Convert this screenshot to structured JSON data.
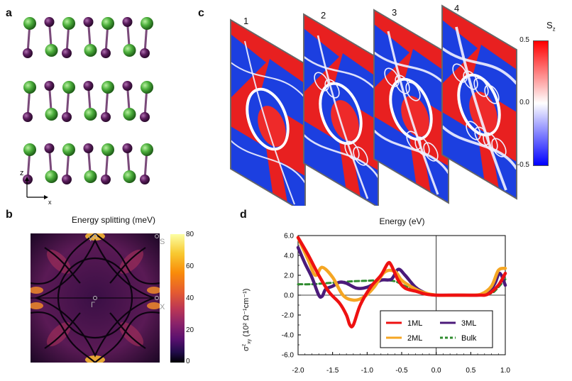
{
  "panels": {
    "a": {
      "label": "a",
      "axis_z": "z",
      "axis_x": "x"
    },
    "b": {
      "label": "b",
      "title": "Energy splitting (meV)",
      "point_s": "S",
      "point_x": "X",
      "point_gamma": "Γ",
      "colorbar_ticks": [
        "80",
        "60",
        "40",
        "20",
        "0"
      ]
    },
    "c": {
      "label": "c",
      "slice_labels": [
        "1",
        "2",
        "3",
        "4"
      ],
      "colorbar_title": "S",
      "colorbar_sub": "z",
      "colorbar_ticks": [
        "0.5",
        "0.0",
        "-0.5"
      ]
    },
    "d": {
      "label": "d",
      "title": "Energy (eV)"
    }
  },
  "colors": {
    "red": "#ee1111",
    "orange": "#f5a623",
    "purple": "#4b1a7a",
    "green": "#2e8b2e",
    "atom_green": "#4caf3c",
    "atom_purple": "#5c1e5e"
  },
  "chart_data": {
    "type": "line",
    "title": "Energy (eV)",
    "ylabel": "σ^z_xy (10² Ω⁻¹cm⁻¹)",
    "xlim": [
      -2.0,
      1.0
    ],
    "ylim": [
      -6.0,
      6.0
    ],
    "xticks": [
      "-2.0",
      "-1.5",
      "-1.0",
      "-0.5",
      "0.0",
      "0.5",
      "1.0"
    ],
    "yticks": [
      "6.0",
      "4.0",
      "2.0",
      "0.0",
      "-2.0",
      "-4.0",
      "-6.0"
    ],
    "legend_placement": "bottom-right",
    "series": [
      {
        "name": "1ML",
        "color": "#ee1111",
        "dash": false,
        "x": [
          -2.0,
          -1.85,
          -1.7,
          -1.55,
          -1.4,
          -1.3,
          -1.25,
          -1.2,
          -1.1,
          -0.95,
          -0.8,
          -0.7,
          -0.65,
          -0.55,
          -0.45,
          -0.3,
          -0.15,
          0.0,
          0.3,
          0.6,
          0.75,
          0.9,
          1.0
        ],
        "y": [
          5.8,
          4.0,
          2.0,
          0.3,
          -0.8,
          -2.0,
          -3.0,
          -3.0,
          -1.0,
          0.8,
          2.0,
          3.2,
          3.0,
          1.5,
          0.7,
          0.4,
          0.1,
          0.0,
          0.0,
          0.0,
          0.1,
          1.0,
          2.2
        ]
      },
      {
        "name": "2ML",
        "color": "#f5a623",
        "dash": false,
        "x": [
          -2.0,
          -1.85,
          -1.75,
          -1.65,
          -1.5,
          -1.35,
          -1.2,
          -1.05,
          -0.9,
          -0.75,
          -0.6,
          -0.5,
          -0.35,
          -0.2,
          0.0,
          0.3,
          0.5,
          0.65,
          0.8,
          0.9,
          1.0
        ],
        "y": [
          5.8,
          3.5,
          2.0,
          2.8,
          1.8,
          0.0,
          -0.5,
          -0.2,
          0.8,
          2.3,
          2.4,
          1.5,
          0.8,
          0.3,
          0.0,
          0.0,
          0.0,
          0.1,
          0.9,
          2.5,
          2.7
        ]
      },
      {
        "name": "3ML",
        "color": "#4b1a7a",
        "dash": false,
        "x": [
          -2.0,
          -1.9,
          -1.8,
          -1.7,
          -1.65,
          -1.6,
          -1.5,
          -1.4,
          -1.3,
          -1.15,
          -1.0,
          -0.8,
          -0.65,
          -0.55,
          -0.45,
          -0.3,
          -0.15,
          0.0,
          0.3,
          0.6,
          0.75,
          0.85,
          0.92,
          1.0
        ],
        "y": [
          4.8,
          3.2,
          1.8,
          0.0,
          -0.1,
          0.6,
          0.9,
          1.3,
          1.2,
          0.7,
          0.8,
          1.5,
          1.6,
          2.6,
          2.0,
          0.8,
          0.2,
          0.0,
          0.0,
          0.0,
          0.2,
          1.2,
          2.2,
          1.0
        ]
      },
      {
        "name": "Bulk",
        "color": "#2e8b2e",
        "dash": true,
        "x": [
          -2.0,
          -1.8,
          -1.6,
          -1.4,
          -1.2,
          -1.0,
          -0.8,
          -0.6,
          -0.45,
          -0.3,
          -0.15,
          0.0,
          0.3,
          0.6,
          0.8,
          0.9,
          1.0
        ],
        "y": [
          1.1,
          1.1,
          1.2,
          1.3,
          1.4,
          1.45,
          1.5,
          1.4,
          0.9,
          0.5,
          0.2,
          0.0,
          0.0,
          0.0,
          0.2,
          0.8,
          1.6
        ]
      }
    ]
  }
}
